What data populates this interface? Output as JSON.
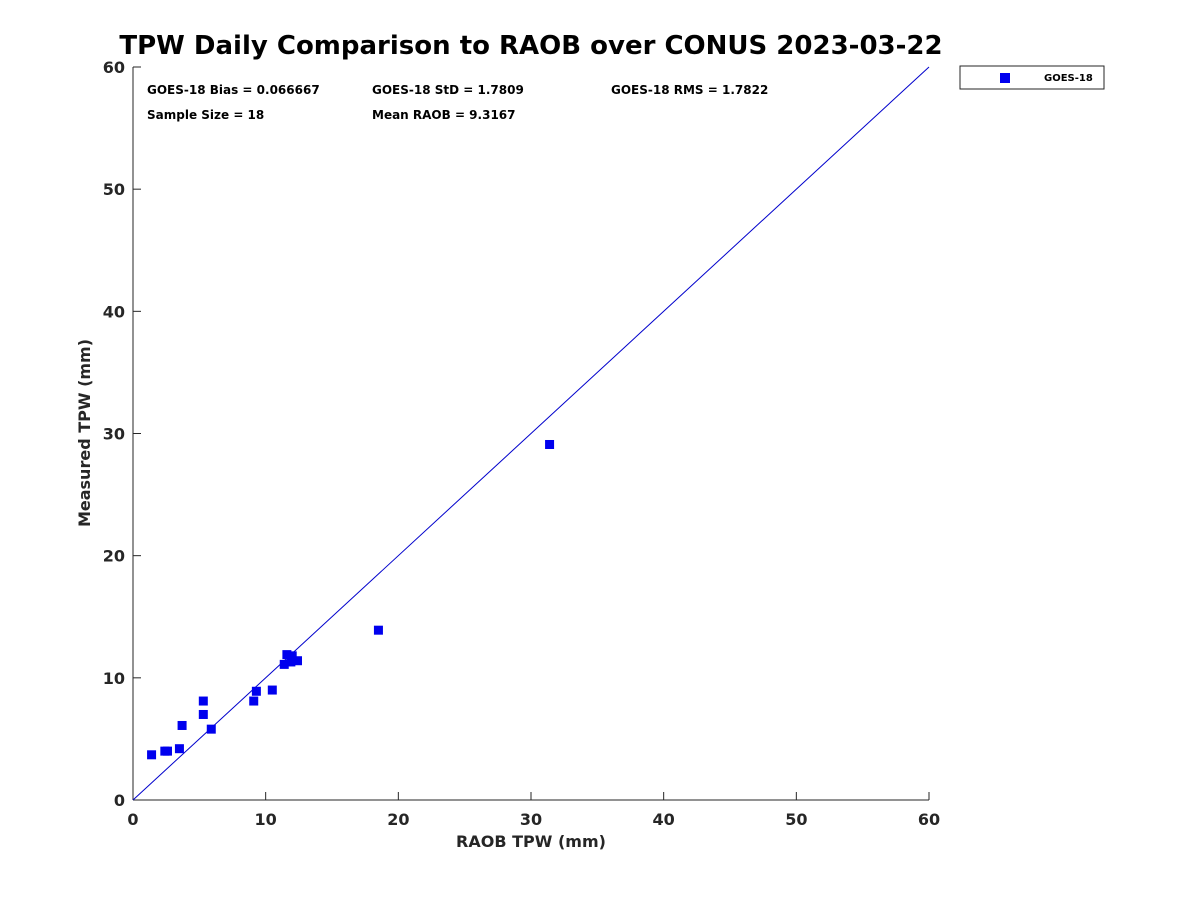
{
  "chart_data": {
    "type": "scatter",
    "title": "TPW Daily Comparison to RAOB over CONUS 2023-03-22",
    "xlabel": "RAOB TPW (mm)",
    "ylabel": "Measured TPW (mm)",
    "xlim": [
      0,
      60
    ],
    "ylim": [
      0,
      60
    ],
    "xticks": [
      0,
      10,
      20,
      30,
      40,
      50,
      60
    ],
    "yticks": [
      0,
      10,
      20,
      30,
      40,
      50,
      60
    ],
    "grid": false,
    "legend_position": "outside-top-right",
    "colors": {
      "marker": "#0000ee",
      "reference_line": "#0000cc",
      "axis": "#262626"
    },
    "reference_line": {
      "x": [
        0,
        60
      ],
      "y": [
        0,
        60
      ]
    },
    "stats": [
      "GOES-18 Bias = 0.066667",
      "GOES-18 StD = 1.7809",
      "GOES-18 RMS = 1.7822",
      "Sample Size = 18",
      "Mean RAOB = 9.3167"
    ],
    "series": [
      {
        "name": "GOES-18",
        "marker": "square",
        "points": [
          {
            "x": 1.4,
            "y": 3.7
          },
          {
            "x": 2.4,
            "y": 4.0
          },
          {
            "x": 2.6,
            "y": 4.0
          },
          {
            "x": 3.5,
            "y": 4.2
          },
          {
            "x": 3.7,
            "y": 6.1
          },
          {
            "x": 5.3,
            "y": 8.1
          },
          {
            "x": 5.3,
            "y": 7.0
          },
          {
            "x": 5.9,
            "y": 5.8
          },
          {
            "x": 9.1,
            "y": 8.1
          },
          {
            "x": 9.3,
            "y": 8.9
          },
          {
            "x": 10.5,
            "y": 9.0
          },
          {
            "x": 11.4,
            "y": 11.1
          },
          {
            "x": 11.6,
            "y": 11.9
          },
          {
            "x": 11.9,
            "y": 11.3
          },
          {
            "x": 12.0,
            "y": 11.8
          },
          {
            "x": 12.4,
            "y": 11.4
          },
          {
            "x": 18.5,
            "y": 13.9
          },
          {
            "x": 31.4,
            "y": 29.1
          }
        ]
      }
    ]
  }
}
